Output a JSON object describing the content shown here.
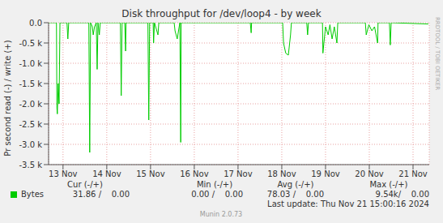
{
  "chart_data": {
    "type": "line",
    "title": "Disk throughput for /dev/loop4 - by week",
    "y_label": "Pr second read (-) / write (+)",
    "x": [
      12.67,
      12.85,
      12.86,
      12.87,
      12.89,
      12.91,
      12.93,
      13.09,
      13.11,
      13.13,
      13.59,
      13.61,
      13.63,
      13.67,
      13.69,
      13.72,
      13.76,
      13.78,
      13.8,
      13.83,
      13.85,
      14.31,
      14.33,
      14.35,
      14.41,
      14.43,
      14.44,
      14.94,
      14.96,
      14.98,
      15.06,
      15.07,
      15.09,
      15.17,
      15.19,
      15.54,
      15.56,
      15.61,
      15.67,
      15.69,
      15.7,
      17.28,
      17.3,
      17.31,
      18.02,
      18.04,
      18.09,
      18.15,
      18.2,
      18.22,
      18.57,
      18.59,
      18.61,
      18.93,
      18.94,
      19.0,
      19.06,
      19.1,
      19.15,
      19.2,
      19.26,
      19.28,
      19.91,
      19.93,
      19.99,
      20.06,
      20.12,
      20.19,
      20.2,
      20.46,
      20.48,
      20.5,
      21.35
    ],
    "series": [
      {
        "name": "Bytes",
        "color": "#00cc00",
        "values": [
          0,
          0,
          -2100,
          -2250,
          -1500,
          -2000,
          0,
          0,
          -400,
          0,
          0,
          -3200,
          0,
          -100,
          -300,
          -100,
          0,
          -1150,
          0,
          -300,
          0,
          0,
          -1800,
          0,
          0,
          -700,
          0,
          0,
          -2400,
          0,
          0,
          -500,
          0,
          -300,
          0,
          0,
          -200,
          -400,
          0,
          -2950,
          0,
          0,
          -250,
          0,
          0,
          -500,
          -750,
          -800,
          -300,
          0,
          0,
          -300,
          0,
          0,
          -750,
          -100,
          -300,
          -50,
          -400,
          -100,
          -500,
          0,
          0,
          -300,
          -50,
          -200,
          -100,
          -500,
          0,
          0,
          -550,
          0,
          -31.86
        ]
      }
    ],
    "xlim": [
      12.67,
      21.37
    ],
    "xticks": [
      {
        "value": 13,
        "label": "13 Nov"
      },
      {
        "value": 14,
        "label": "14 Nov"
      },
      {
        "value": 15,
        "label": "15 Nov"
      },
      {
        "value": 16,
        "label": "16 Nov"
      },
      {
        "value": 17,
        "label": "17 Nov"
      },
      {
        "value": 18,
        "label": "18 Nov"
      },
      {
        "value": 19,
        "label": "19 Nov"
      },
      {
        "value": 20,
        "label": "20 Nov"
      },
      {
        "value": 21,
        "label": "21 Nov"
      }
    ],
    "ylim": [
      -3500,
      0
    ],
    "yticks": [
      {
        "value": 0,
        "label": "0.0"
      },
      {
        "value": -500,
        "label": "-0.5 k"
      },
      {
        "value": -1000,
        "label": "-1.0 k"
      },
      {
        "value": -1500,
        "label": "-1.5 k"
      },
      {
        "value": -2000,
        "label": "-2.0 k"
      },
      {
        "value": -2500,
        "label": "-2.5 k"
      },
      {
        "value": -3000,
        "label": "-3.0 k"
      },
      {
        "value": -3500,
        "label": "-3.5 k"
      }
    ],
    "grid": true,
    "annotations": [
      "RRDTOOL / TOBI OETIKER",
      "Cur (-/+)",
      "Min (-/+)",
      "Avg (-/+)",
      "Max (-/+)",
      "31.86 /    0.00",
      "0.00 /    0.00",
      "78.03 /    0.00",
      "9.54k/    0.00",
      "Last update: Thu Nov 21 15:00:16 2024",
      "Munin 2.0.73"
    ]
  }
}
